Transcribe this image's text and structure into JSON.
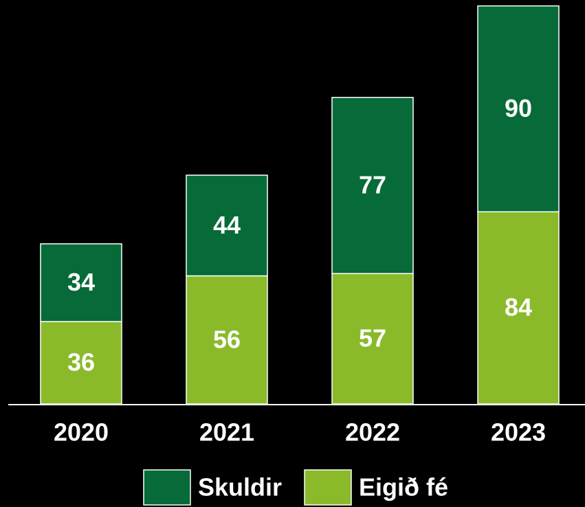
{
  "chart_data": {
    "type": "stacked_bar",
    "categories": [
      "2020",
      "2021",
      "2022",
      "2023"
    ],
    "series": [
      {
        "name": "Skuldir",
        "color": "#066b38",
        "values": [
          34,
          44,
          77,
          90
        ]
      },
      {
        "name": "Eigið fé",
        "color": "#8aba2a",
        "values": [
          36,
          56,
          57,
          84
        ]
      }
    ]
  }
}
